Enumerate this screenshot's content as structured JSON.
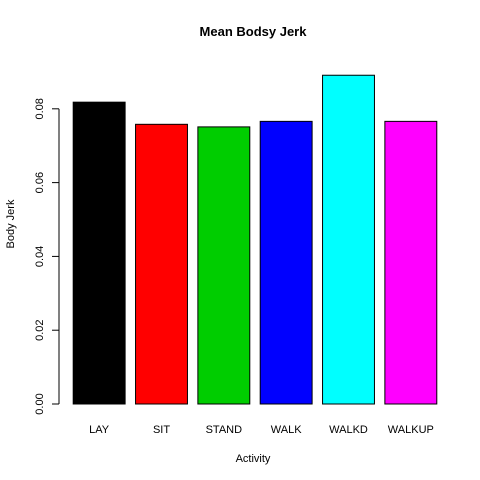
{
  "chart_data": {
    "type": "bar",
    "title": "Mean Bodsy Jerk",
    "xlabel": "Activity",
    "ylabel": "Body Jerk",
    "categories": [
      "LAY",
      "SIT",
      "STAND",
      "WALK",
      "WALKD",
      "WALKUP"
    ],
    "values": [
      0.0818,
      0.0758,
      0.0751,
      0.0766,
      0.0891,
      0.0766
    ],
    "colors": [
      "#000000",
      "#ff0000",
      "#00cd00",
      "#0000ff",
      "#00ffff",
      "#ff00ff"
    ],
    "ylim": [
      0,
      0.0935
    ],
    "yticks": [
      0.0,
      0.02,
      0.04,
      0.06,
      0.08
    ],
    "ytick_labels": [
      "0.00",
      "0.02",
      "0.04",
      "0.06",
      "0.08"
    ],
    "grid": false,
    "legend": "none"
  }
}
